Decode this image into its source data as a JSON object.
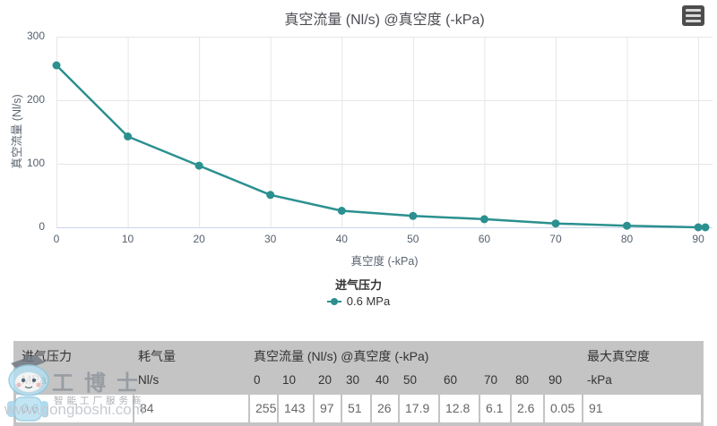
{
  "chart_data": {
    "type": "line",
    "title": "真空流量 (Nl/s) @真空度 (-kPa)",
    "xlabel": "真空度 (-kPa)",
    "ylabel": "真空流量 (Nl/s)",
    "xlim": [
      0,
      92
    ],
    "ylim": [
      0,
      300
    ],
    "x_ticks": [
      0,
      10,
      20,
      30,
      40,
      50,
      60,
      70,
      80,
      90
    ],
    "y_ticks": [
      0,
      100,
      200,
      300
    ],
    "grid": true,
    "legend_position": "bottom",
    "legend_title": "进气压力",
    "series": [
      {
        "name": "0.6 MPa",
        "color": "#2b908f",
        "x": [
          0,
          10,
          20,
          30,
          40,
          50,
          60,
          70,
          80,
          90,
          91
        ],
        "y": [
          255,
          143,
          97,
          51,
          26,
          17.9,
          12.8,
          6.1,
          2.6,
          0.05,
          0
        ]
      }
    ]
  },
  "table": {
    "group_headers": [
      {
        "label": "进气压力",
        "span": 1
      },
      {
        "label": "耗气量",
        "span": 1
      },
      {
        "label": "真空流量 (Nl/s) @真空度 (-kPa)",
        "span": 10
      },
      {
        "label": "最大真空度",
        "span": 1
      }
    ],
    "unit_row": [
      "MPa",
      "Nl/s",
      "0",
      "10",
      "20",
      "30",
      "40",
      "50",
      "60",
      "70",
      "80",
      "90",
      "-kPa"
    ],
    "rows": [
      [
        "0.6",
        "84",
        "255",
        "143",
        "97",
        "51",
        "26",
        "17.9",
        "12.8",
        "6.1",
        "2.6",
        "0.05",
        "91"
      ]
    ]
  },
  "watermark": {
    "brand": "工博士",
    "tagline": "智能工厂服务商",
    "url": "www.gongboshi.com"
  },
  "colors": {
    "series": "#2b908f",
    "grid_line": "#e6e6e6",
    "axis_line": "#ccd6eb",
    "tick_label": "#55606e",
    "title_text": "#4c4c54",
    "table_header_bg": "#c4c4c4"
  }
}
